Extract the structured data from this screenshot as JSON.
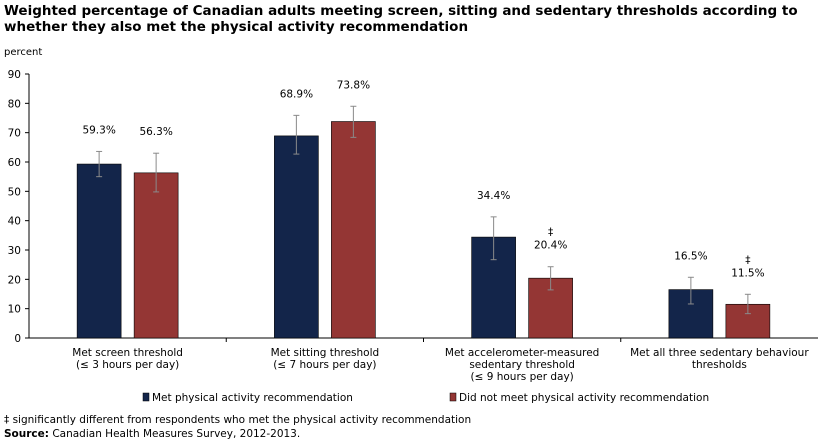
{
  "header": {
    "title": "Weighted percentage of Canadian adults meeting screen, sitting and sedentary thresholds according to whether they also met the physical activity recommendation"
  },
  "chart_data": {
    "type": "bar",
    "ylabel": "percent",
    "xlabel": "",
    "ylim": [
      0,
      90
    ],
    "yticks": [
      "0",
      "10",
      "20",
      "30",
      "40",
      "50",
      "60",
      "70",
      "80",
      "90"
    ],
    "grid": false,
    "legend_position": "bottom",
    "categories": [
      [
        "Met screen threshold",
        "(≤ 3 hours per day)"
      ],
      [
        "Met sitting threshold",
        "(≤ 7 hours per day)"
      ],
      [
        "Met accelerometer-measured",
        "sedentary threshold",
        "(≤ 9 hours per day)"
      ],
      [
        "Met all three sedentary behaviour",
        "thresholds"
      ]
    ],
    "series": [
      {
        "name": "Met physical activity recommendation",
        "color": "#13254a",
        "values": [
          59.3,
          68.9,
          34.4,
          16.5
        ],
        "error_low": [
          55.0,
          62.7,
          26.7,
          11.6
        ],
        "error_high": [
          63.6,
          75.9,
          41.3,
          20.7
        ],
        "labels": [
          "59.3%",
          "68.9%",
          "34.4%",
          "16.5%"
        ],
        "markers": [
          "",
          "",
          "",
          ""
        ]
      },
      {
        "name": "Did not meet physical activity recommendation",
        "color": "#943634",
        "values": [
          56.3,
          73.8,
          20.4,
          11.5
        ],
        "error_low": [
          49.8,
          68.4,
          16.4,
          8.3
        ],
        "error_high": [
          63.0,
          79.0,
          24.3,
          14.9
        ],
        "labels": [
          "56.3%",
          "73.8%",
          "20.4%",
          "11.5%"
        ],
        "markers": [
          "",
          "",
          "‡",
          "‡"
        ]
      }
    ]
  },
  "footnotes": {
    "significance_marker": "‡",
    "significance_text": " significantly different from respondents who met the physical activity recommendation",
    "source_label": "Source:",
    "source_text": " Canadian Health Measures Survey, 2012-2013."
  }
}
